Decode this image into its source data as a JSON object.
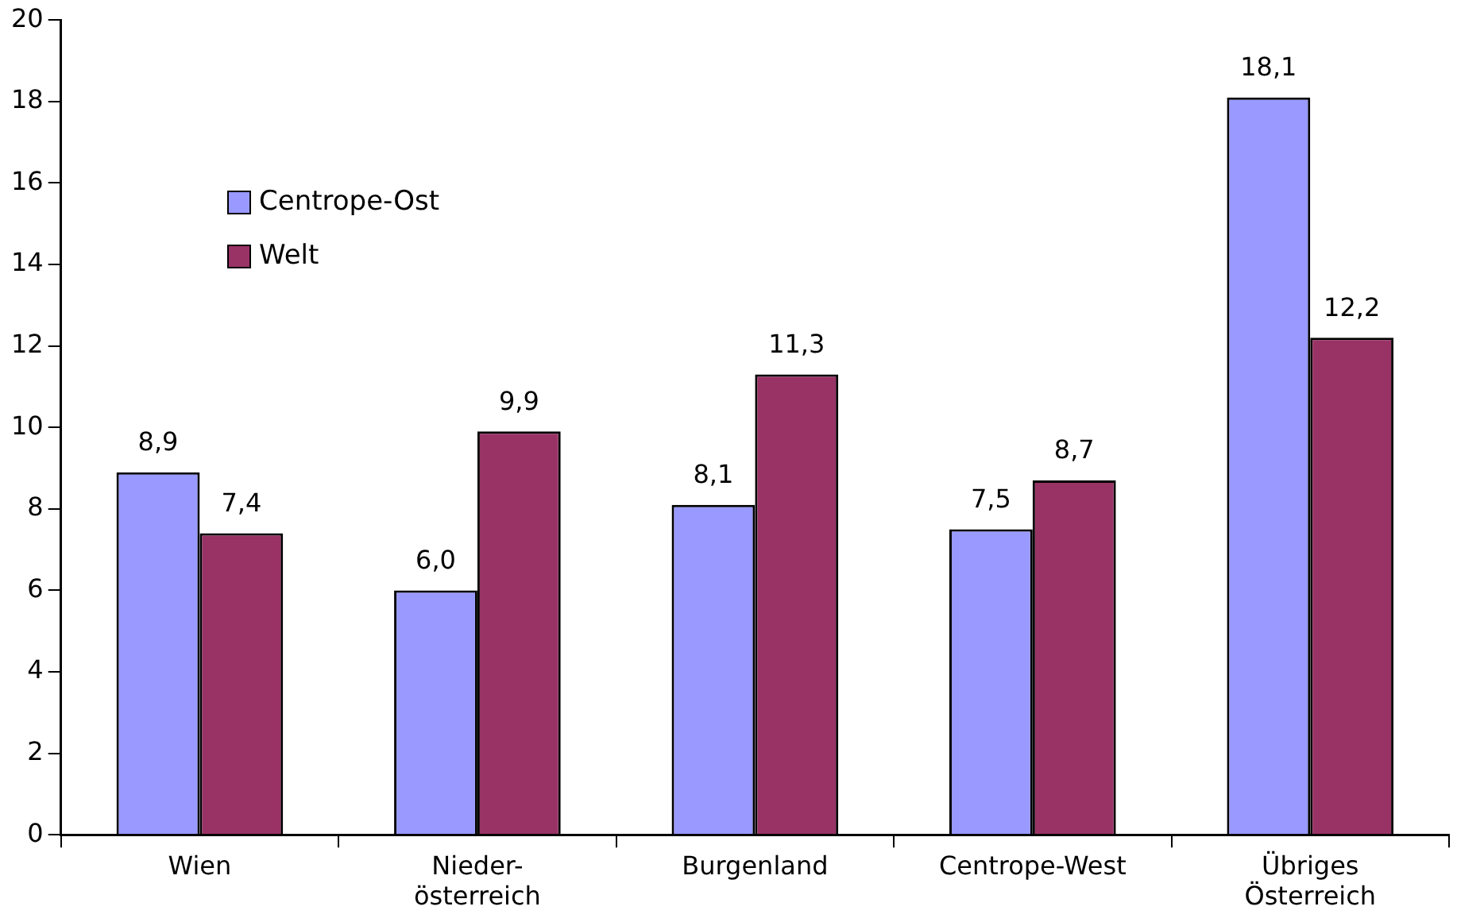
{
  "chart_data": {
    "type": "bar",
    "categories": [
      "Wien",
      "Nieder-\nösterreich",
      "Burgenland",
      "Centrope-West",
      "Übriges\nÖsterreich"
    ],
    "series": [
      {
        "name": "Centrope-Ost",
        "color": "#9999ff",
        "values": [
          8.9,
          6.0,
          8.1,
          7.5,
          18.1
        ],
        "value_labels": [
          "8,9",
          "6,0",
          "8,1",
          "7,5",
          "18,1"
        ]
      },
      {
        "name": "Welt",
        "color": "#993366",
        "values": [
          7.4,
          9.9,
          11.3,
          8.7,
          12.2
        ],
        "value_labels": [
          "7,4",
          "9,9",
          "11,3",
          "8,7",
          "12,2"
        ]
      }
    ],
    "ylim": [
      0,
      20
    ],
    "yticks": [
      0,
      2,
      4,
      6,
      8,
      10,
      12,
      14,
      16,
      18,
      20
    ],
    "grid": false,
    "legend": "top left"
  }
}
